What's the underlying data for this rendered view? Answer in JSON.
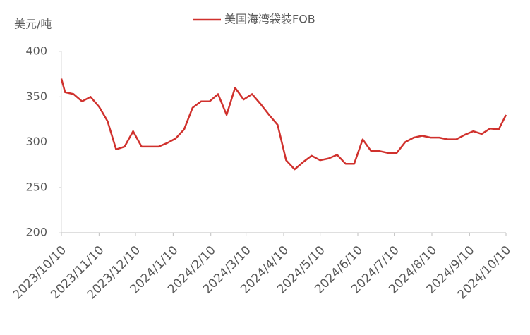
{
  "chart_data": {
    "type": "line",
    "ylabel": "美元/吨",
    "x": [
      "2023/10/10",
      "2023/10/13",
      "2023/10/20",
      "2023/10/27",
      "2023/11/3",
      "2023/11/10",
      "2023/11/17",
      "2023/11/24",
      "2023/12/1",
      "2023/12/8",
      "2023/12/15",
      "2023/12/22",
      "2023/12/29",
      "2024/1/5",
      "2024/1/12",
      "2024/1/19",
      "2024/1/26",
      "2024/2/2",
      "2024/2/9",
      "2024/2/16",
      "2024/2/23",
      "2024/3/1",
      "2024/3/8",
      "2024/3/15",
      "2024/3/22",
      "2024/3/29",
      "2024/4/5",
      "2024/4/12",
      "2024/4/19",
      "2024/4/26",
      "2024/5/3",
      "2024/5/10",
      "2024/5/17",
      "2024/5/24",
      "2024/5/31",
      "2024/6/7",
      "2024/6/14",
      "2024/6/21",
      "2024/6/28",
      "2024/7/5",
      "2024/7/12",
      "2024/7/19",
      "2024/7/26",
      "2024/8/2",
      "2024/8/9",
      "2024/8/16",
      "2024/8/23",
      "2024/8/30",
      "2024/9/6",
      "2024/9/13",
      "2024/9/20",
      "2024/9/27",
      "2024/10/4",
      "2024/10/10"
    ],
    "series": [
      {
        "name": "美国海湾袋装FOB",
        "color": "#d0312d",
        "values": [
          370,
          355,
          353,
          345,
          350,
          339,
          323,
          292,
          295,
          312,
          295,
          295,
          295,
          299,
          304,
          314,
          338,
          345,
          345,
          353,
          330,
          360,
          347,
          353,
          342,
          330,
          319,
          280,
          270,
          278,
          285,
          280,
          282,
          286,
          276,
          276,
          303,
          290,
          290,
          288,
          288,
          300,
          305,
          307,
          305,
          305,
          303,
          303,
          308,
          312,
          309,
          315,
          314,
          330
        ]
      }
    ],
    "xlim": [
      "2023/10/10",
      "2024/10/10"
    ],
    "xticks": [
      "2023/10/10",
      "2023/11/10",
      "2023/12/10",
      "2024/1/10",
      "2024/2/10",
      "2024/3/10",
      "2024/4/10",
      "2024/5/10",
      "2024/6/10",
      "2024/7/10",
      "2024/8/10",
      "2024/9/10",
      "2024/10/10"
    ],
    "ylim": [
      200,
      400
    ],
    "yticks": [
      200,
      250,
      300,
      350,
      400
    ],
    "legend": "top"
  }
}
